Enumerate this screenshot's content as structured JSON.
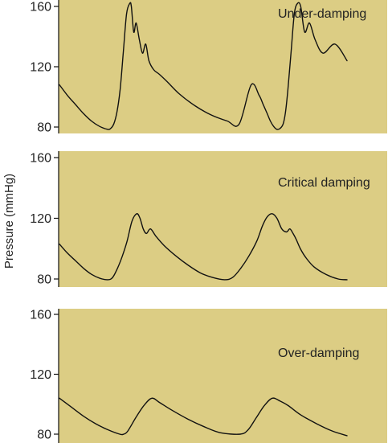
{
  "y_axis_label": "Pressure (mmHg)",
  "colors": {
    "panel_background": "#dccd84",
    "trace": "#111111",
    "text": "#222222"
  },
  "chart_data": [
    {
      "type": "line",
      "title": "Under-damping",
      "ylabel": "Pressure (mmHg)",
      "ylim": [
        80,
        160
      ],
      "yticks": [
        80,
        120,
        160
      ],
      "grid": false,
      "x": [
        0,
        10,
        20,
        30,
        40,
        50,
        60,
        64,
        68,
        72,
        76,
        80,
        84,
        88,
        90,
        93,
        96,
        100,
        104,
        108,
        112,
        118,
        125,
        135,
        150,
        170,
        190,
        210,
        225,
        240,
        250,
        255,
        260,
        264,
        268,
        272,
        276,
        280,
        283,
        286,
        290,
        294,
        298,
        302,
        307,
        313,
        320,
        330,
        345,
        360
      ],
      "series": [
        {
          "values": [
            108,
            101,
            95,
            89,
            84,
            80.5,
            78.5,
            79,
            82,
            90,
            105,
            130,
            155,
            162,
            160,
            143,
            149,
            138,
            129,
            135,
            124,
            118,
            115,
            110,
            102,
            94,
            88,
            84,
            82,
            108,
            101,
            95,
            89,
            84,
            80.5,
            78.5,
            79,
            82,
            90,
            105,
            130,
            155,
            162,
            160,
            143,
            149,
            138,
            129,
            135,
            124
          ]
        }
      ]
    },
    {
      "type": "line",
      "title": "Critical damping",
      "ylabel": "Pressure (mmHg)",
      "ylim": [
        80,
        160
      ],
      "yticks": [
        80,
        120,
        160
      ],
      "grid": false,
      "x": [
        0,
        10,
        20,
        30,
        40,
        50,
        60,
        66,
        72,
        78,
        84,
        90,
        96,
        100,
        104,
        108,
        113,
        120,
        130,
        145,
        160,
        175,
        190,
        205,
        215,
        225,
        235,
        245,
        252,
        258,
        264,
        270,
        276,
        282,
        286,
        290,
        294,
        299,
        306,
        316,
        331,
        346,
        357
      ],
      "series": [
        {
          "values": [
            103,
            97,
            92,
            87,
            83,
            80.5,
            79.5,
            81,
            87,
            95,
            105,
            118,
            123,
            120,
            113,
            110,
            113,
            108,
            102,
            95,
            89,
            84,
            81,
            79.5,
            81,
            87,
            95,
            105,
            115,
            121,
            123,
            120,
            113,
            111,
            113,
            110,
            106,
            100,
            94,
            88,
            83,
            80,
            79.5
          ]
        }
      ]
    },
    {
      "type": "line",
      "title": "Over-damping",
      "ylabel": "Pressure (mmHg)",
      "ylim": [
        80,
        160
      ],
      "yticks": [
        80,
        120,
        160
      ],
      "grid": false,
      "x": [
        0,
        15,
        30,
        45,
        60,
        75,
        80,
        85,
        95,
        105,
        115,
        125,
        140,
        160,
        180,
        200,
        225,
        235,
        245,
        255,
        265,
        275,
        285,
        300,
        320,
        340,
        358
      ],
      "series": [
        {
          "values": [
            104,
            98,
            92,
            87,
            83,
            80,
            80,
            82,
            91,
            99,
            104,
            101,
            96,
            90,
            85,
            81,
            80,
            83,
            91,
            99,
            104,
            102,
            99,
            93,
            87,
            82,
            79
          ]
        }
      ]
    }
  ]
}
